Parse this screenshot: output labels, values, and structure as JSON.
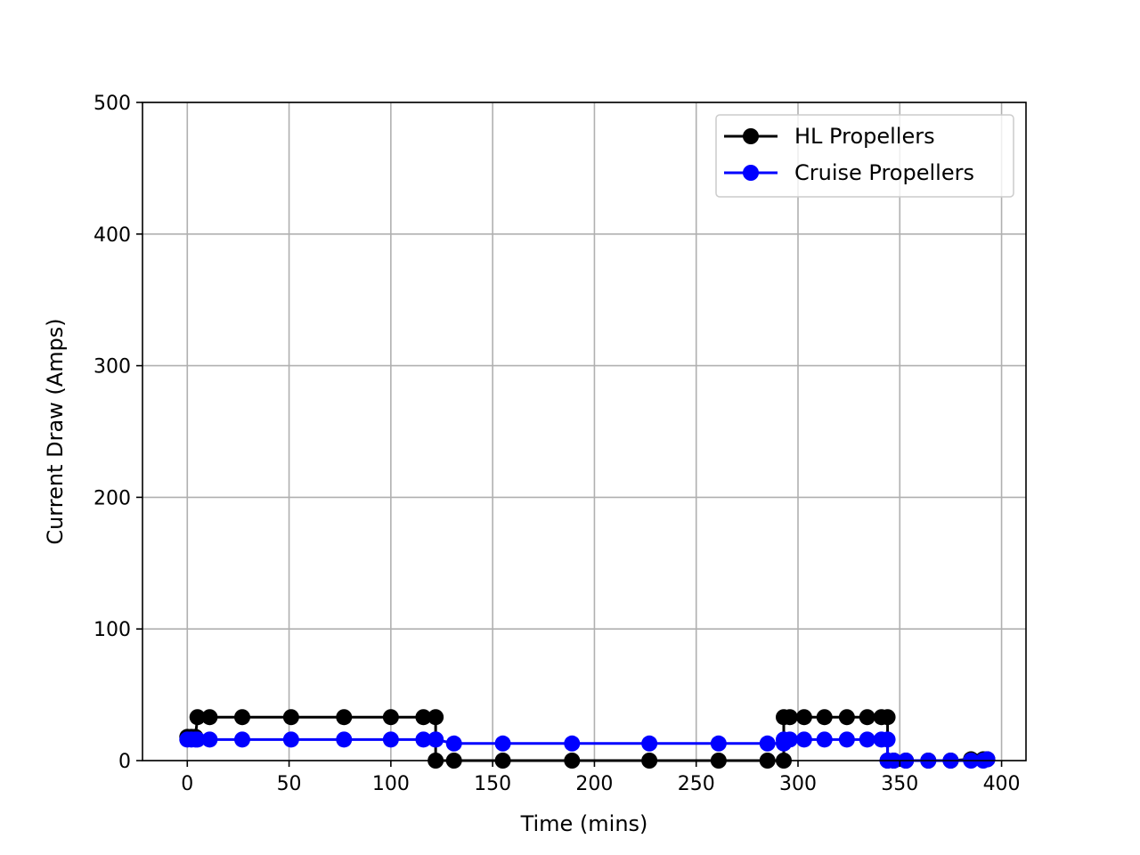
{
  "chart_data": {
    "type": "line",
    "xlabel": "Time (mins)",
    "ylabel": "Current Draw (Amps)",
    "xlim": [
      -22,
      412
    ],
    "ylim": [
      0,
      500
    ],
    "xticks": [
      0,
      50,
      100,
      150,
      200,
      250,
      300,
      350,
      400
    ],
    "yticks": [
      0,
      100,
      200,
      300,
      400,
      500
    ],
    "grid": true,
    "legend_position": "top-right",
    "series": [
      {
        "name": "HL Propellers",
        "color": "#000000",
        "marker": "circle",
        "points": [
          [
            0,
            18
          ],
          [
            2,
            18
          ],
          [
            4,
            18
          ],
          [
            5,
            33
          ],
          [
            11,
            33
          ],
          [
            27,
            33
          ],
          [
            51,
            33
          ],
          [
            77,
            33
          ],
          [
            100,
            33
          ],
          [
            116,
            33
          ],
          [
            122,
            33
          ],
          [
            122,
            0
          ],
          [
            131,
            0
          ],
          [
            155,
            0
          ],
          [
            189,
            0
          ],
          [
            227,
            0
          ],
          [
            261,
            0
          ],
          [
            285,
            0
          ],
          [
            293,
            0
          ],
          [
            293,
            33
          ],
          [
            296,
            33
          ],
          [
            303,
            33
          ],
          [
            313,
            33
          ],
          [
            324,
            33
          ],
          [
            334,
            33
          ],
          [
            341,
            33
          ],
          [
            344,
            33
          ],
          [
            344,
            0
          ],
          [
            347,
            0
          ],
          [
            353,
            0
          ],
          [
            364,
            0
          ],
          [
            375,
            0
          ],
          [
            385,
            1
          ],
          [
            391,
            1
          ],
          [
            393,
            1
          ]
        ]
      },
      {
        "name": "Cruise Propellers",
        "color": "#0000ff",
        "marker": "circle",
        "points": [
          [
            0,
            16
          ],
          [
            2,
            16
          ],
          [
            4,
            16
          ],
          [
            5,
            16
          ],
          [
            11,
            16
          ],
          [
            27,
            16
          ],
          [
            51,
            16
          ],
          [
            77,
            16
          ],
          [
            100,
            16
          ],
          [
            116,
            16
          ],
          [
            122,
            16
          ],
          [
            122,
            16
          ],
          [
            131,
            13
          ],
          [
            155,
            13
          ],
          [
            189,
            13
          ],
          [
            227,
            13
          ],
          [
            261,
            13
          ],
          [
            285,
            13
          ],
          [
            293,
            13
          ],
          [
            293,
            16
          ],
          [
            296,
            16
          ],
          [
            303,
            16
          ],
          [
            313,
            16
          ],
          [
            324,
            16
          ],
          [
            334,
            16
          ],
          [
            341,
            16
          ],
          [
            344,
            16
          ],
          [
            344,
            0
          ],
          [
            347,
            0
          ],
          [
            353,
            0
          ],
          [
            364,
            0
          ],
          [
            375,
            0
          ],
          [
            385,
            0
          ],
          [
            391,
            0
          ],
          [
            393,
            1
          ]
        ]
      }
    ]
  }
}
